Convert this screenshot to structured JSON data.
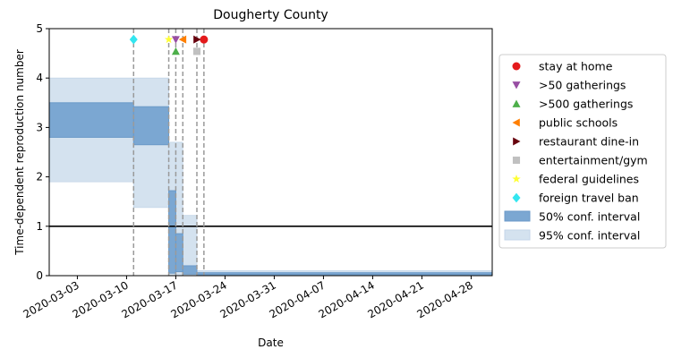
{
  "chart_data": {
    "type": "area",
    "title": "Dougherty County",
    "xlabel": "Date",
    "ylabel": "Time-dependent reproduction number",
    "xlim": [
      "2020-02-28",
      "2020-05-01"
    ],
    "ylim": [
      0,
      5
    ],
    "x_ticks": [
      "2020-03-03",
      "2020-03-10",
      "2020-03-17",
      "2020-03-24",
      "2020-03-31",
      "2020-04-07",
      "2020-04-14",
      "2020-04-21",
      "2020-04-28"
    ],
    "y_ticks": [
      "0",
      "1",
      "2",
      "3",
      "4",
      "5"
    ],
    "reference_line": 1,
    "intervals": [
      {
        "start": "2020-02-28",
        "end": "2020-03-11",
        "ci50": [
          2.8,
          3.5
        ],
        "ci95": [
          1.9,
          4.0
        ]
      },
      {
        "start": "2020-03-11",
        "end": "2020-03-16",
        "ci50": [
          2.65,
          3.42
        ],
        "ci95": [
          1.38,
          4.0
        ]
      },
      {
        "start": "2020-03-16",
        "end": "2020-03-17",
        "ci50": [
          0.05,
          1.72
        ],
        "ci95": [
          0.0,
          2.7
        ]
      },
      {
        "start": "2020-03-17",
        "end": "2020-03-18",
        "ci50": [
          0.08,
          0.85
        ],
        "ci95": [
          0.0,
          2.7
        ]
      },
      {
        "start": "2020-03-18",
        "end": "2020-03-20",
        "ci50": [
          0.03,
          0.2
        ],
        "ci95": [
          0.0,
          1.22
        ]
      },
      {
        "start": "2020-03-20",
        "end": "2020-05-01",
        "ci50": [
          0.02,
          0.06
        ],
        "ci95": [
          0.0,
          0.1
        ]
      }
    ],
    "interventions": [
      {
        "name": "stay at home",
        "date": "2020-03-21",
        "y": 4.78,
        "color": "#e41a1c",
        "marker": "circle"
      },
      {
        "name": ">50 gatherings",
        "date": "2020-03-17",
        "y": 4.78,
        "color": "#984ea3",
        "marker": "triangle-down"
      },
      {
        "name": ">500 gatherings",
        "date": "2020-03-17",
        "y": 4.54,
        "color": "#4daf4a",
        "marker": "triangle-up"
      },
      {
        "name": "public schools",
        "date": "2020-03-18",
        "y": 4.78,
        "color": "#ff7f00",
        "marker": "triangle-left"
      },
      {
        "name": "restaurant dine-in",
        "date": "2020-03-20",
        "y": 4.78,
        "color": "#67000d",
        "marker": "triangle-right"
      },
      {
        "name": "entertainment/gym",
        "date": "2020-03-20",
        "y": 4.54,
        "color": "#c0c0c0",
        "marker": "square"
      },
      {
        "name": "federal guidelines",
        "date": "2020-03-16",
        "y": 4.78,
        "color": "#ffff33",
        "marker": "star"
      },
      {
        "name": "foreign travel ban",
        "date": "2020-03-11",
        "y": 4.78,
        "color": "#33e6f0",
        "marker": "diamond"
      }
    ],
    "legend": {
      "position": "center-right",
      "ci50_label": "50% conf. interval",
      "ci95_label": "95% conf. interval"
    },
    "colors": {
      "ci50_fill": "#7ba7d2",
      "ci50_edge": "#6b9ac8",
      "ci95_fill": "#d4e2ef",
      "reference_line": "#000000",
      "vline": "#9a9a9a"
    }
  }
}
